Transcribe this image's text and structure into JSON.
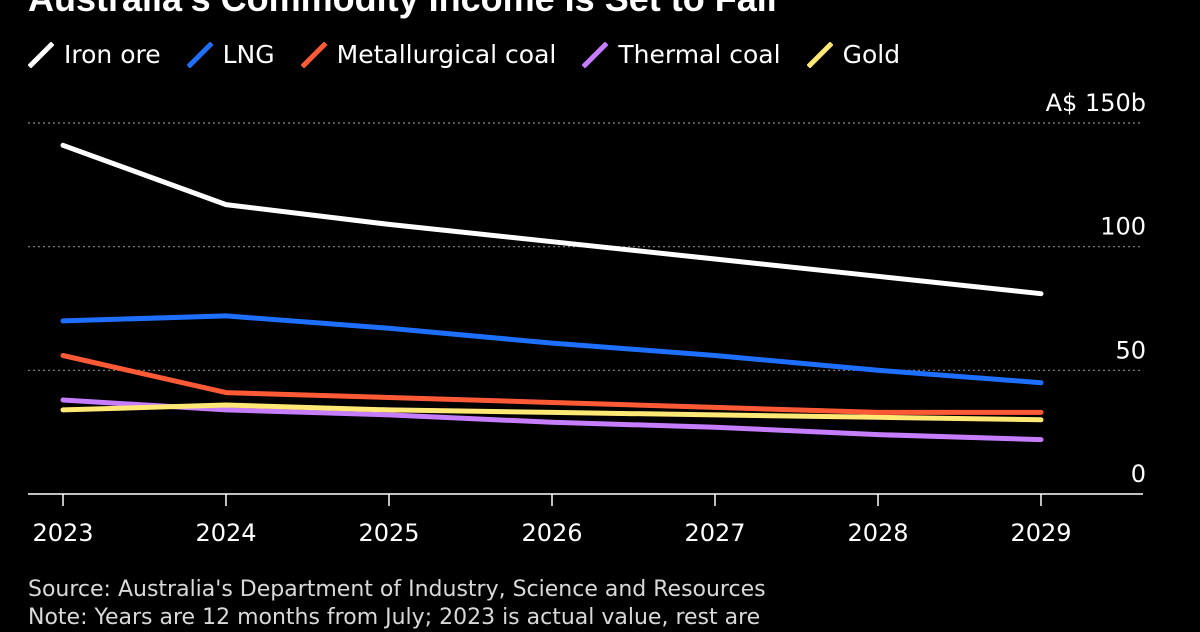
{
  "title": "Australia's Commodity Income Is Set to Fall",
  "chart_data": {
    "type": "line",
    "title": "Australia's Commodity Income Is Set to Fall",
    "x": [
      2023,
      2024,
      2025,
      2026,
      2027,
      2028,
      2029
    ],
    "x_tick_labels": [
      "2023",
      "2024",
      "2025",
      "2026",
      "2027",
      "2028",
      "2029"
    ],
    "y_tick_values": [
      0,
      50,
      100,
      150
    ],
    "y_tick_labels": [
      "0",
      "50",
      "100",
      "A$ 150b"
    ],
    "ylim": [
      0,
      150
    ],
    "ylabel": "A$ billions",
    "grid": true,
    "legend_position": "top",
    "series": [
      {
        "name": "Iron ore",
        "color": "#ffffff",
        "values": [
          141,
          117,
          109,
          102,
          95,
          88,
          81
        ]
      },
      {
        "name": "LNG",
        "color": "#1f6fff",
        "values": [
          70,
          72,
          67,
          61,
          56,
          50,
          45
        ]
      },
      {
        "name": "Metallurgical coal",
        "color": "#ff5a36",
        "values": [
          56,
          41,
          39,
          37,
          35,
          33,
          33
        ]
      },
      {
        "name": "Thermal coal",
        "color": "#c77dff",
        "values": [
          38,
          34,
          32,
          29,
          27,
          24,
          22
        ]
      },
      {
        "name": "Gold",
        "color": "#ffe873",
        "values": [
          34,
          36,
          34,
          33,
          32,
          31,
          30
        ]
      }
    ]
  },
  "footer": {
    "source": "Source: Australia's Department of Industry, Science and Resources",
    "note": "Note: Years are 12 months from July; 2023 is actual value, rest are"
  }
}
